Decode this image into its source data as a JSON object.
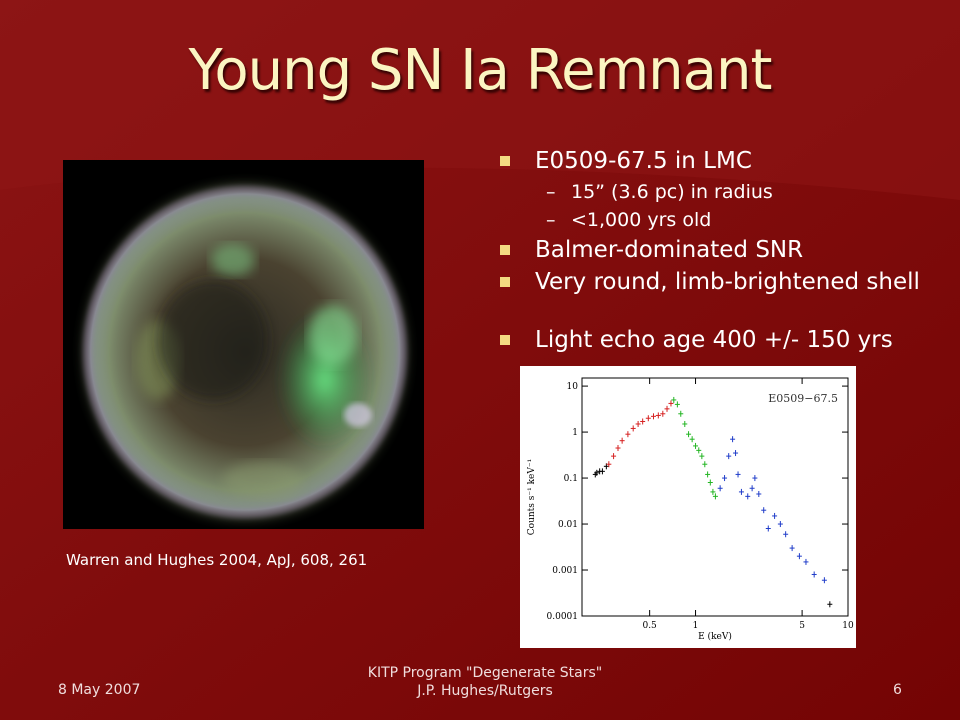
{
  "slide": {
    "title": "Young SN Ia Remnant",
    "background_color": "#7d0a0a",
    "bullet_color": "#f3da82",
    "title_color": "#fbf5c2"
  },
  "image": {
    "credit": "Warren and Hughes 2004, ApJ, 608, 261"
  },
  "bullets": [
    {
      "text": "E0509-67.5 in LMC"
    },
    {
      "text": "Balmer-dominated SNR"
    },
    {
      "text": "Very round, limb-brightened shell"
    },
    {
      "text": "Light echo age 400 +/- 150 yrs"
    }
  ],
  "subbullets": [
    {
      "dash": "–",
      "text": "15” (3.6 pc) in radius"
    },
    {
      "dash": "–",
      "text": "<1,000 yrs old"
    }
  ],
  "chart_data": {
    "type": "scatter",
    "title": "E0509−67.5",
    "xlabel": "E (keV)",
    "ylabel": "Counts s⁻¹ keV⁻¹",
    "x_scale": "log",
    "y_scale": "log",
    "xlim": [
      0.18,
      10
    ],
    "ylim": [
      0.0001,
      15
    ],
    "x_ticks": [
      0.5,
      1,
      5,
      10
    ],
    "x_tick_labels": [
      "0.5",
      "1",
      "5",
      "10"
    ],
    "y_ticks": [
      10,
      1,
      0.1,
      0.01,
      0.001,
      0.0001
    ],
    "y_tick_labels": [
      "10",
      "1",
      "0.1",
      "0.01",
      "0.001",
      "0.0001"
    ],
    "series": [
      {
        "color": "#000000",
        "x": [
          0.22,
          0.225,
          0.235,
          0.245,
          0.26
        ],
        "y": [
          0.12,
          0.13,
          0.14,
          0.14,
          0.18
        ]
      },
      {
        "color": "#d62020",
        "x": [
          0.27,
          0.29,
          0.31,
          0.33,
          0.36,
          0.39,
          0.42,
          0.45,
          0.49,
          0.53,
          0.57,
          0.61,
          0.65,
          0.69
        ],
        "y": [
          0.2,
          0.3,
          0.45,
          0.65,
          0.9,
          1.2,
          1.5,
          1.7,
          2.0,
          2.2,
          2.3,
          2.5,
          3.2,
          4.2
        ]
      },
      {
        "color": "#22b522",
        "x": [
          0.72,
          0.76,
          0.8,
          0.85,
          0.9,
          0.95,
          1.0,
          1.05,
          1.1,
          1.15,
          1.2,
          1.25,
          1.3,
          1.35
        ],
        "y": [
          5.0,
          4.0,
          2.5,
          1.5,
          0.9,
          0.7,
          0.5,
          0.4,
          0.3,
          0.2,
          0.12,
          0.08,
          0.05,
          0.04
        ]
      },
      {
        "color": "#1f3cc9",
        "x": [
          1.45,
          1.55,
          1.65,
          1.75,
          1.83,
          1.9,
          2.0,
          2.2,
          2.35,
          2.45,
          2.6,
          2.8,
          3.0,
          3.3,
          3.6,
          3.9,
          4.3,
          4.8,
          5.3,
          6.0,
          7.0
        ],
        "y": [
          0.06,
          0.1,
          0.3,
          0.7,
          0.35,
          0.12,
          0.05,
          0.04,
          0.06,
          0.1,
          0.045,
          0.02,
          0.008,
          0.015,
          0.01,
          0.006,
          0.003,
          0.002,
          0.0015,
          0.0008,
          0.0006
        ]
      },
      {
        "color": "#000000",
        "x": [
          7.6
        ],
        "y": [
          0.00018
        ]
      }
    ]
  },
  "footer": {
    "date": "8 May 2007",
    "program": "KITP Program \"Degenerate Stars\"",
    "author": "J.P. Hughes/Rutgers",
    "page": "6"
  }
}
